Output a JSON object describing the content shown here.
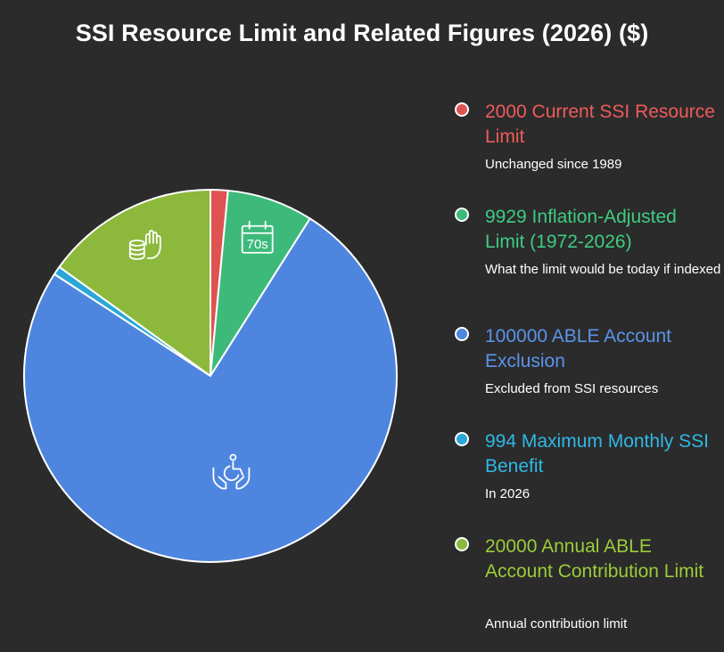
{
  "chart_data": {
    "type": "pie",
    "title": "SSI Resource Limit and Related Figures (2026) ($)",
    "slices": [
      {
        "label": "2000 Current SSI Resource Limit",
        "value": 2000,
        "description": "Unchanged since 1989",
        "color": "#e05252",
        "icon": ""
      },
      {
        "label": "9929 Inflation-Adjusted Limit (1972-2026)",
        "value": 9929,
        "description": "What the limit would be today if indexed",
        "color": "#3dba7a",
        "icon": "calendar-70s-icon"
      },
      {
        "label": "100000 ABLE Account Exclusion",
        "value": 100000,
        "description": "Excluded from SSI resources",
        "color": "#4e86df",
        "icon": "disability-care-hands-icon"
      },
      {
        "label": "994 Maximum Monthly SSI Benefit",
        "value": 994,
        "description": "In 2026",
        "color": "#2aa7d8",
        "icon": ""
      },
      {
        "label": "20000 Annual ABLE Account Contribution Limit",
        "value": 20000,
        "description": "Annual contribution limit",
        "color": "#8cb83c",
        "icon": "coins-hand-icon"
      }
    ],
    "legend_position": "right",
    "legend_label_colors": [
      "#f05a5a",
      "#3ecc82",
      "#5b93ea",
      "#2fb8e6",
      "#9ccc3a"
    ],
    "icon_text": {
      "calendar": "70s"
    }
  }
}
